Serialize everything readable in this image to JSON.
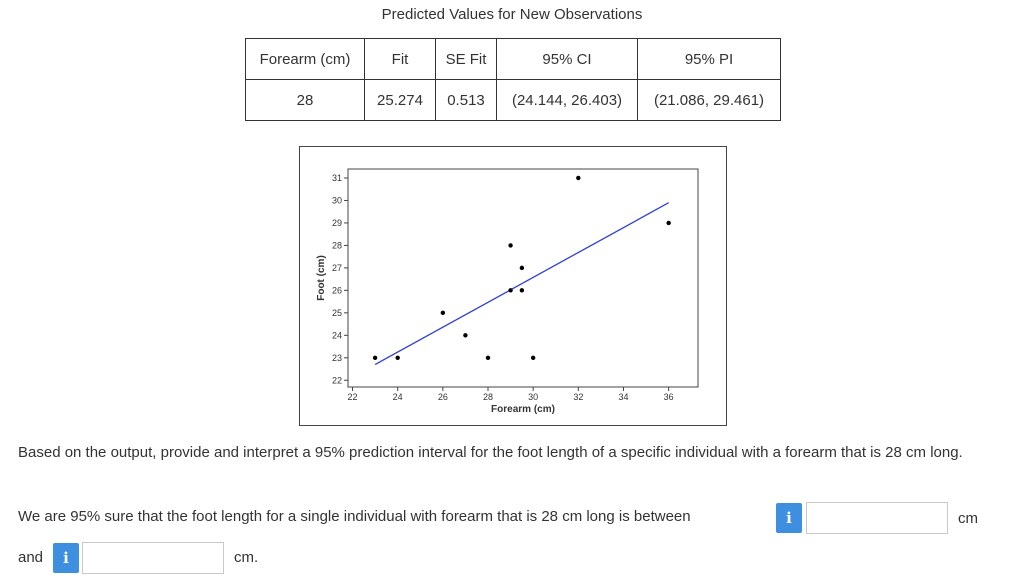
{
  "table": {
    "title": "Predicted Values for New Observations",
    "headers": [
      "Forearm (cm)",
      "Fit",
      "SE Fit",
      "95% CI",
      "95% PI"
    ],
    "row": [
      "28",
      "25.274",
      "0.513",
      "(24.144, 26.403)",
      "(21.086, 29.461)"
    ]
  },
  "chart_data": {
    "type": "scatter",
    "xlabel": "Forearm (cm)",
    "ylabel": "Foot (cm)",
    "xlim": [
      21.8,
      37.3
    ],
    "ylim": [
      21.7,
      31.4
    ],
    "xticks": [
      22,
      24,
      26,
      28,
      30,
      32,
      34,
      36
    ],
    "yticks": [
      22,
      23,
      24,
      25,
      26,
      27,
      28,
      29,
      30,
      31
    ],
    "points": [
      {
        "x": 23,
        "y": 23
      },
      {
        "x": 24,
        "y": 23
      },
      {
        "x": 26,
        "y": 25
      },
      {
        "x": 27,
        "y": 24
      },
      {
        "x": 28,
        "y": 23
      },
      {
        "x": 29,
        "y": 28
      },
      {
        "x": 29,
        "y": 26
      },
      {
        "x": 29.5,
        "y": 27
      },
      {
        "x": 29.5,
        "y": 26
      },
      {
        "x": 30,
        "y": 23
      },
      {
        "x": 32,
        "y": 31
      },
      {
        "x": 36,
        "y": 29
      }
    ],
    "fit_line": {
      "x": [
        23,
        36
      ],
      "y": [
        22.7,
        29.9
      ],
      "color": "#2f3fd9"
    },
    "grid": false,
    "point_color": "#000000"
  },
  "question": {
    "prompt": "Based on the output, provide and interpret a 95% prediction interval for the foot length of a specific individual with a forearm that is 28 cm long.",
    "answer_prefix": "We are 95% sure that the foot length for a single individual with forearm that is 28 cm long is between",
    "unit_1": "cm",
    "and_label": "and",
    "unit_2": "cm.",
    "info_icon": "i",
    "input_1_value": "",
    "input_2_value": ""
  },
  "colors": {
    "info_icon": "#3f8fe0",
    "fit_line": "#2f3fd9"
  }
}
